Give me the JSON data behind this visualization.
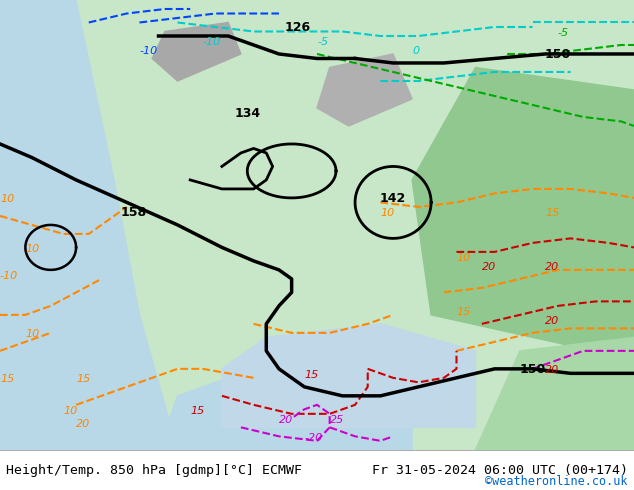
{
  "title_left": "Height/Temp. 850 hPa [gdmp][°C] ECMWF",
  "title_right": "Fr 31-05-2024 06:00 UTC (00+174)",
  "credit": "©weatheronline.co.uk",
  "bg_color": "#ffffff",
  "bottom_bar_color": "#ffffff",
  "bottom_text_color": "#000000",
  "credit_color": "#0066cc",
  "map_bg_colors": {
    "land_light": "#c8e6c8",
    "land_mid": "#a0d0a0",
    "sea": "#d0e8f0",
    "mountain": "#b0b0b0"
  },
  "contour_colors": {
    "height_black": "#000000",
    "temp_orange": "#ff8800",
    "temp_red": "#cc0000",
    "temp_cyan": "#00cccc",
    "temp_blue": "#0044ff",
    "temp_green": "#00aa00",
    "temp_magenta": "#cc00cc",
    "temp_dark_orange": "#dd6600"
  },
  "fig_width": 6.34,
  "fig_height": 4.9,
  "dpi": 100,
  "bottom_bar_height": 0.082,
  "font_size_bottom": 9.5,
  "font_size_credit": 8.5
}
